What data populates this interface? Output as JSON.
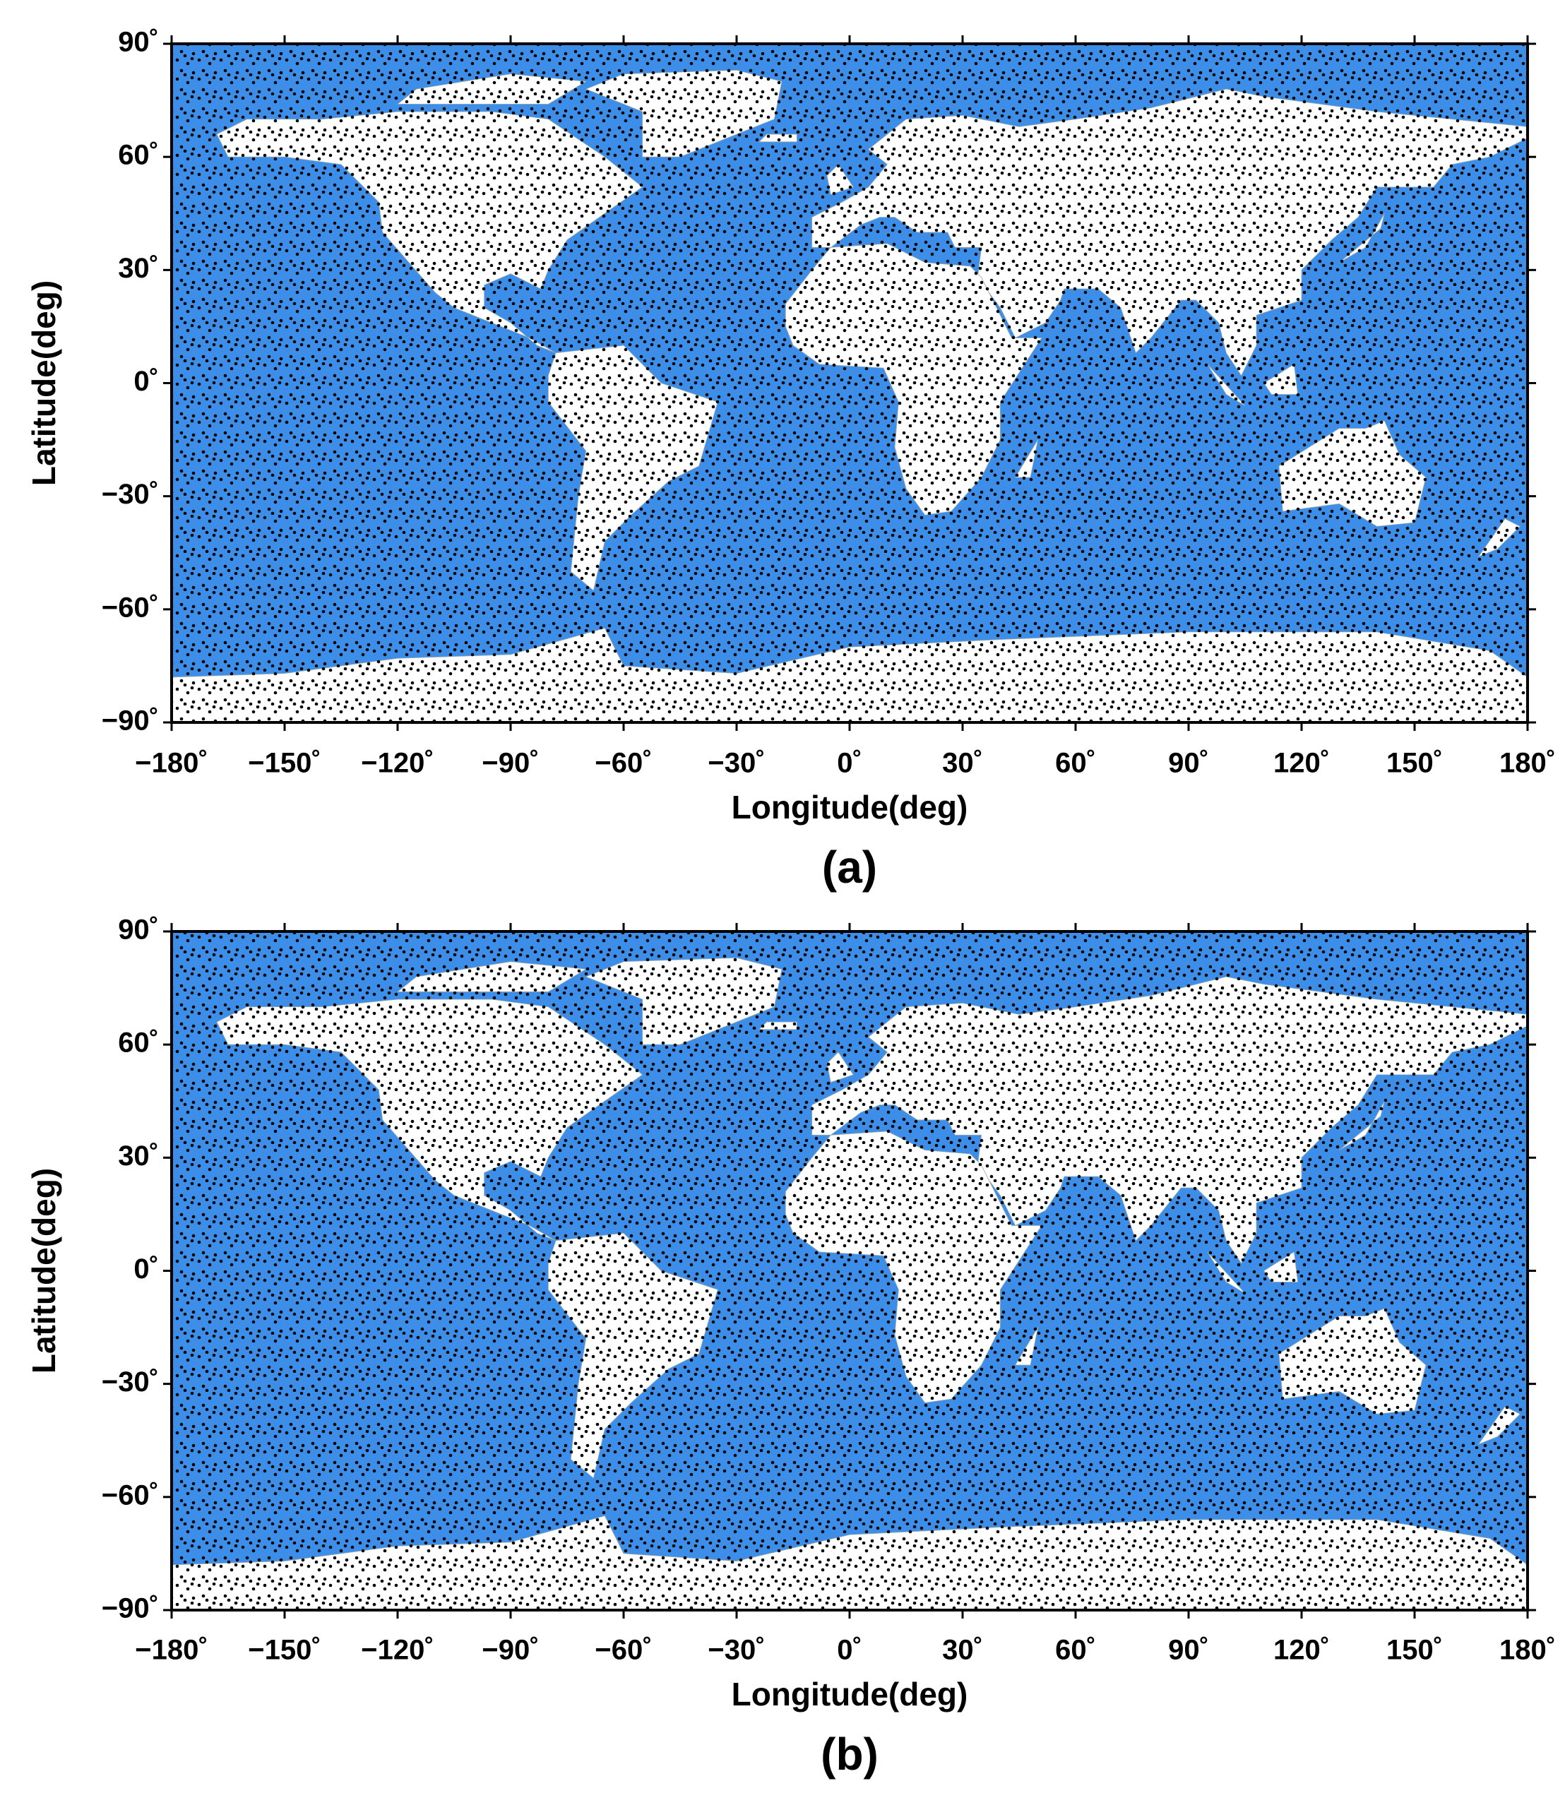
{
  "chart_data": [
    {
      "type": "map",
      "caption": "(a)",
      "xlabel": "Longitude(deg)",
      "ylabel": "Latitude(deg)",
      "xlim": [
        -180,
        180
      ],
      "ylim": [
        -90,
        90
      ],
      "xticks": [
        {
          "value": -180,
          "label": "−180˚"
        },
        {
          "value": -150,
          "label": "−150˚"
        },
        {
          "value": -120,
          "label": "−120˚"
        },
        {
          "value": -90,
          "label": "−90˚"
        },
        {
          "value": -60,
          "label": "−60˚"
        },
        {
          "value": -30,
          "label": "−30˚"
        },
        {
          "value": 0,
          "label": "0˚"
        },
        {
          "value": 30,
          "label": "30˚"
        },
        {
          "value": 60,
          "label": "60˚"
        },
        {
          "value": 90,
          "label": "90˚"
        },
        {
          "value": 120,
          "label": "120˚"
        },
        {
          "value": 150,
          "label": "150˚"
        },
        {
          "value": 180,
          "label": "180˚"
        }
      ],
      "yticks": [
        {
          "value": -90,
          "label": "−90˚"
        },
        {
          "value": -60,
          "label": "−60˚"
        },
        {
          "value": -30,
          "label": "−30˚"
        },
        {
          "value": 0,
          "label": "0˚"
        },
        {
          "value": 30,
          "label": "30˚"
        },
        {
          "value": 60,
          "label": "60˚"
        },
        {
          "value": 90,
          "label": "90˚"
        }
      ]
    },
    {
      "type": "map",
      "caption": "(b)",
      "xlabel": "Longitude(deg)",
      "ylabel": "Latitude(deg)",
      "xlim": [
        -180,
        180
      ],
      "ylim": [
        -90,
        90
      ],
      "xticks": [
        {
          "value": -180,
          "label": "−180˚"
        },
        {
          "value": -150,
          "label": "−150˚"
        },
        {
          "value": -120,
          "label": "−120˚"
        },
        {
          "value": -90,
          "label": "−90˚"
        },
        {
          "value": -60,
          "label": "−60˚"
        },
        {
          "value": -30,
          "label": "−30˚"
        },
        {
          "value": 0,
          "label": "0˚"
        },
        {
          "value": 30,
          "label": "30˚"
        },
        {
          "value": 60,
          "label": "60˚"
        },
        {
          "value": 90,
          "label": "90˚"
        },
        {
          "value": 120,
          "label": "120˚"
        },
        {
          "value": 150,
          "label": "150˚"
        },
        {
          "value": 180,
          "label": "180˚"
        }
      ],
      "yticks": [
        {
          "value": -90,
          "label": "−90˚"
        },
        {
          "value": -60,
          "label": "−60˚"
        },
        {
          "value": -30,
          "label": "−30˚"
        },
        {
          "value": 0,
          "label": "0˚"
        },
        {
          "value": 30,
          "label": "30˚"
        },
        {
          "value": 60,
          "label": "60˚"
        },
        {
          "value": 90,
          "label": "90˚"
        }
      ]
    }
  ]
}
